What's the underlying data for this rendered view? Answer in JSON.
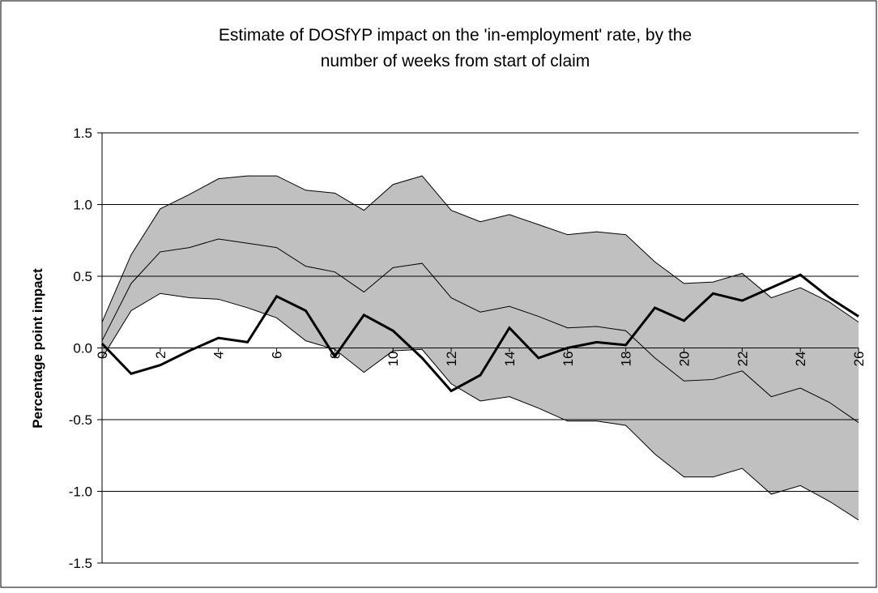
{
  "chart_data": {
    "type": "line",
    "title": [
      "Estimate of DOSfYP impact on the 'in-employment' rate, by the",
      "number of weeks from start of claim"
    ],
    "y_label": "Percentage point impact",
    "x": [
      0,
      1,
      2,
      3,
      4,
      5,
      6,
      7,
      8,
      9,
      10,
      11,
      12,
      13,
      14,
      15,
      16,
      17,
      18,
      19,
      20,
      21,
      22,
      23,
      24,
      25,
      26
    ],
    "xlim": [
      0,
      26
    ],
    "xticks": [
      0,
      2,
      4,
      6,
      8,
      10,
      12,
      14,
      16,
      18,
      20,
      22,
      24,
      26
    ],
    "ylim": [
      -1.5,
      1.5
    ],
    "yticks": [
      1.5,
      {
        "value": 1,
        "label": "1.0"
      },
      0.5,
      {
        "value": 0,
        "label": "0.0"
      },
      -0.5,
      {
        "value": -1,
        "label": "-1.0"
      },
      -1.5
    ],
    "grid": true,
    "fill_between": [
      0,
      2
    ],
    "fill_color": "#c0c0c0",
    "series": [
      {
        "color": "#000000",
        "width": 1,
        "values": [
          0.18,
          0.65,
          0.97,
          1.07,
          1.18,
          1.2,
          1.2,
          1.1,
          1.08,
          0.96,
          1.14,
          1.2,
          0.96,
          0.88,
          0.93,
          0.86,
          0.79,
          0.81,
          0.79,
          0.6,
          0.45,
          0.46,
          0.52,
          0.35,
          0.42,
          0.32,
          0.18
        ]
      },
      {
        "color": "#000000",
        "width": 1,
        "values": [
          0.05,
          0.45,
          0.67,
          0.7,
          0.76,
          0.73,
          0.7,
          0.57,
          0.53,
          0.39,
          0.56,
          0.59,
          0.35,
          0.25,
          0.29,
          0.22,
          0.14,
          0.15,
          0.12,
          -0.07,
          -0.23,
          -0.22,
          -0.16,
          -0.34,
          -0.28,
          -0.38,
          -0.52
        ]
      },
      {
        "color": "#000000",
        "width": 1,
        "values": [
          -0.07,
          0.26,
          0.38,
          0.35,
          0.34,
          0.28,
          0.21,
          0.05,
          -0.01,
          -0.17,
          -0.02,
          -0.01,
          -0.25,
          -0.37,
          -0.34,
          -0.42,
          -0.51,
          -0.51,
          -0.54,
          -0.74,
          -0.9,
          -0.9,
          -0.84,
          -1.02,
          -0.96,
          -1.07,
          -1.2
        ]
      },
      {
        "color": "#000000",
        "width": 3,
        "values": [
          0.03,
          -0.18,
          -0.12,
          -0.02,
          0.07,
          0.04,
          0.36,
          0.26,
          -0.06,
          0.23,
          0.12,
          -0.07,
          -0.3,
          -0.19,
          0.14,
          -0.07,
          0,
          0.04,
          0.02,
          0.28,
          0.19,
          0.38,
          0.33,
          0.42,
          0.51,
          0.35,
          0.22
        ]
      }
    ]
  }
}
